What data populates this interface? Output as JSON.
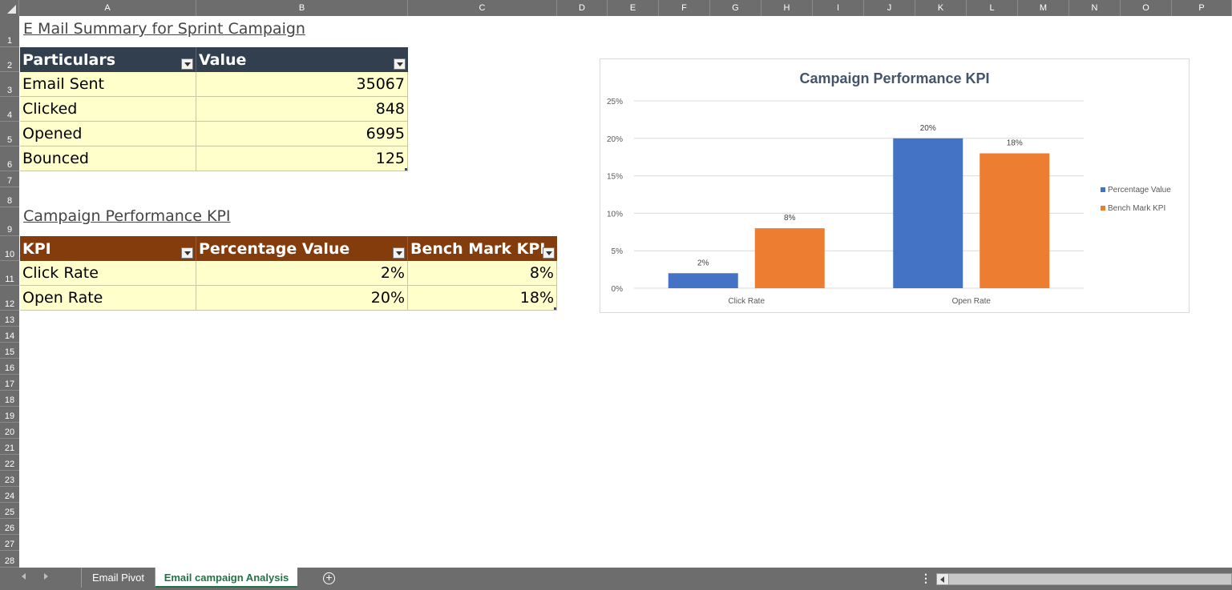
{
  "columns": [
    "A",
    "B",
    "C",
    "D",
    "E",
    "F",
    "G",
    "H",
    "I",
    "J",
    "K",
    "L",
    "M",
    "N",
    "O",
    "P"
  ],
  "rows": [
    "1",
    "2",
    "3",
    "4",
    "5",
    "6",
    "7",
    "8",
    "9",
    "10",
    "11",
    "12",
    "13",
    "14",
    "15",
    "16",
    "17",
    "18",
    "19",
    "20",
    "21",
    "22",
    "23",
    "24",
    "25",
    "26",
    "27",
    "28"
  ],
  "email_summary": {
    "title": "E Mail Summary for Sprint Campaign",
    "headers": [
      "Particulars",
      "Value"
    ],
    "rows": [
      {
        "label": "Email Sent",
        "value": "35067"
      },
      {
        "label": "Clicked",
        "value": "848"
      },
      {
        "label": "Opened",
        "value": "6995"
      },
      {
        "label": "Bounced",
        "value": "125"
      }
    ],
    "header_color": "#323f4f"
  },
  "kpi_table": {
    "title": "Campaign Performance KPI",
    "headers": [
      "KPI",
      "Percentage Value",
      "Bench Mark KPI"
    ],
    "rows": [
      {
        "kpi": "Click Rate",
        "pct": "2%",
        "bench": "8%"
      },
      {
        "kpi": "Open Rate",
        "pct": "20%",
        "bench": "18%"
      }
    ],
    "header_color": "#843c0c"
  },
  "chart_data": {
    "type": "bar",
    "title": "Campaign Performance KPI",
    "categories": [
      "Click Rate",
      "Open Rate"
    ],
    "series": [
      {
        "name": "Percentage Value",
        "values": [
          0.02,
          0.2
        ],
        "labels": [
          "2%",
          "20%"
        ],
        "color": "#4472c4"
      },
      {
        "name": "Bench Mark KPI",
        "values": [
          0.08,
          0.18
        ],
        "labels": [
          "8%",
          "18%"
        ],
        "color": "#ed7d31"
      }
    ],
    "yticks": [
      "0%",
      "5%",
      "10%",
      "15%",
      "20%",
      "25%"
    ],
    "ylim": [
      0,
      0.25
    ],
    "grid": true,
    "legend": "right"
  },
  "sheet_tabs": [
    {
      "label": "Email Pivot",
      "active": false
    },
    {
      "label": "Email campaign Analysis",
      "active": true
    }
  ],
  "add_sheet_label": "+",
  "more_label": "⋮"
}
